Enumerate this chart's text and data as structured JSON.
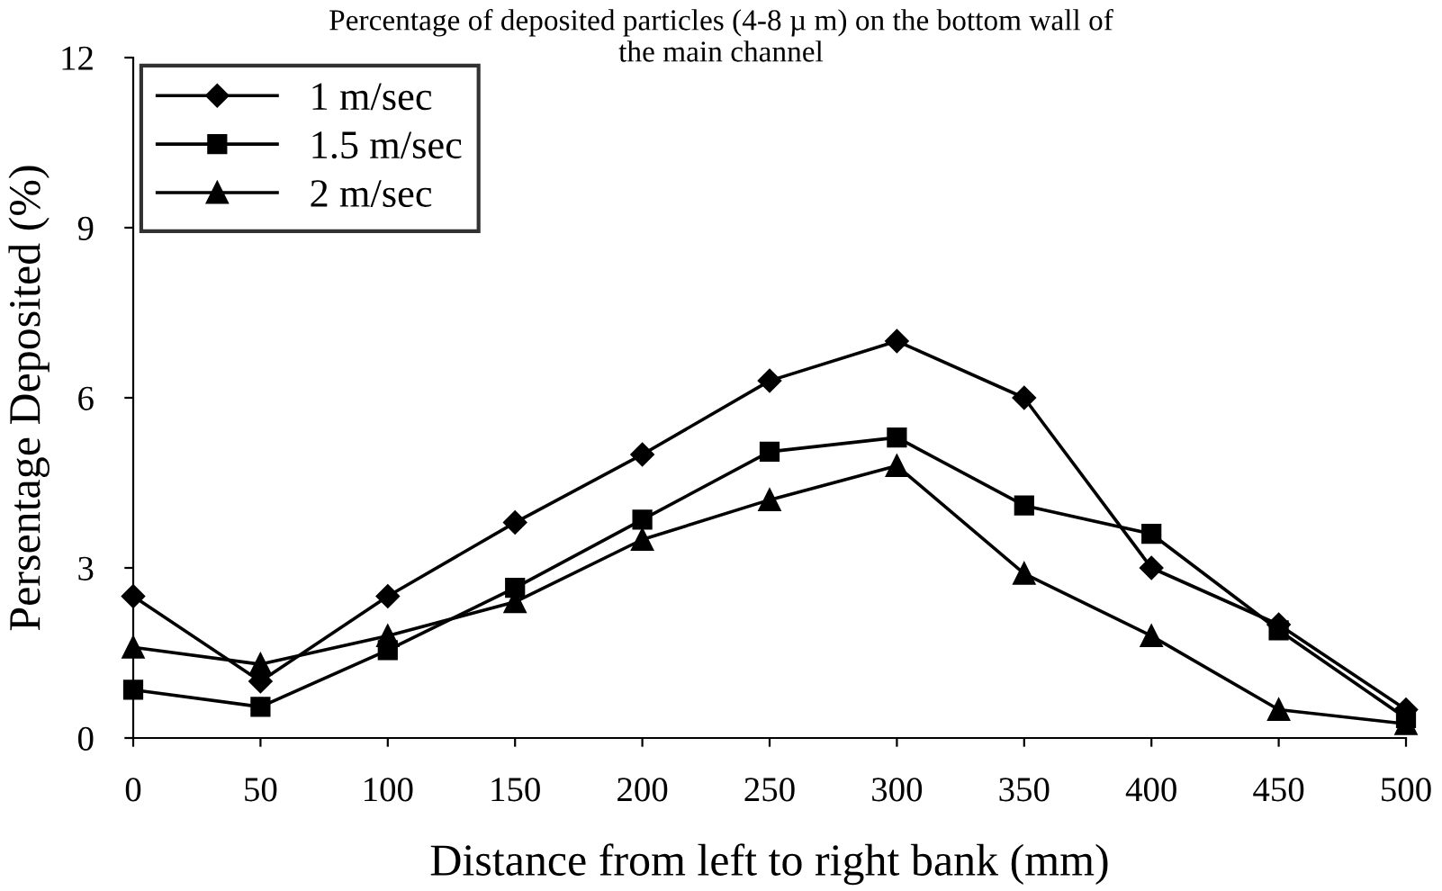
{
  "chart_data": {
    "type": "line",
    "title": "Percentage of deposited particles (4-8 µ m) on the bottom wall of\nthe main channel",
    "xlabel": "Distance from left to right bank (mm)",
    "ylabel": "Persentage Deposited (%)",
    "x": [
      0,
      50,
      100,
      150,
      200,
      250,
      300,
      350,
      400,
      450,
      500
    ],
    "series": [
      {
        "name": "1 m/sec",
        "color": "#000000",
        "marker": "diamond",
        "values": [
          2.5,
          1.0,
          2.5,
          3.8,
          5.0,
          6.3,
          7.0,
          6.0,
          3.0,
          2.0,
          0.5
        ]
      },
      {
        "name": "1.5 m/sec",
        "color": "#000000",
        "marker": "square",
        "values": [
          0.85,
          0.55,
          1.55,
          2.65,
          3.85,
          5.05,
          5.3,
          4.1,
          3.6,
          1.9,
          0.35
        ]
      },
      {
        "name": "2 m/sec",
        "color": "#000000",
        "marker": "triangle",
        "values": [
          1.6,
          1.3,
          1.8,
          2.4,
          3.5,
          4.2,
          4.8,
          2.9,
          1.8,
          0.5,
          0.25
        ]
      }
    ],
    "xlim": [
      0,
      500
    ],
    "xticks": [
      0,
      50,
      100,
      150,
      200,
      250,
      300,
      350,
      400,
      450,
      500
    ],
    "ylim": [
      0,
      12
    ],
    "yticks": [
      0,
      3,
      6,
      9,
      12
    ],
    "grid": false,
    "legend": "top left",
    "line_style": "solid"
  }
}
